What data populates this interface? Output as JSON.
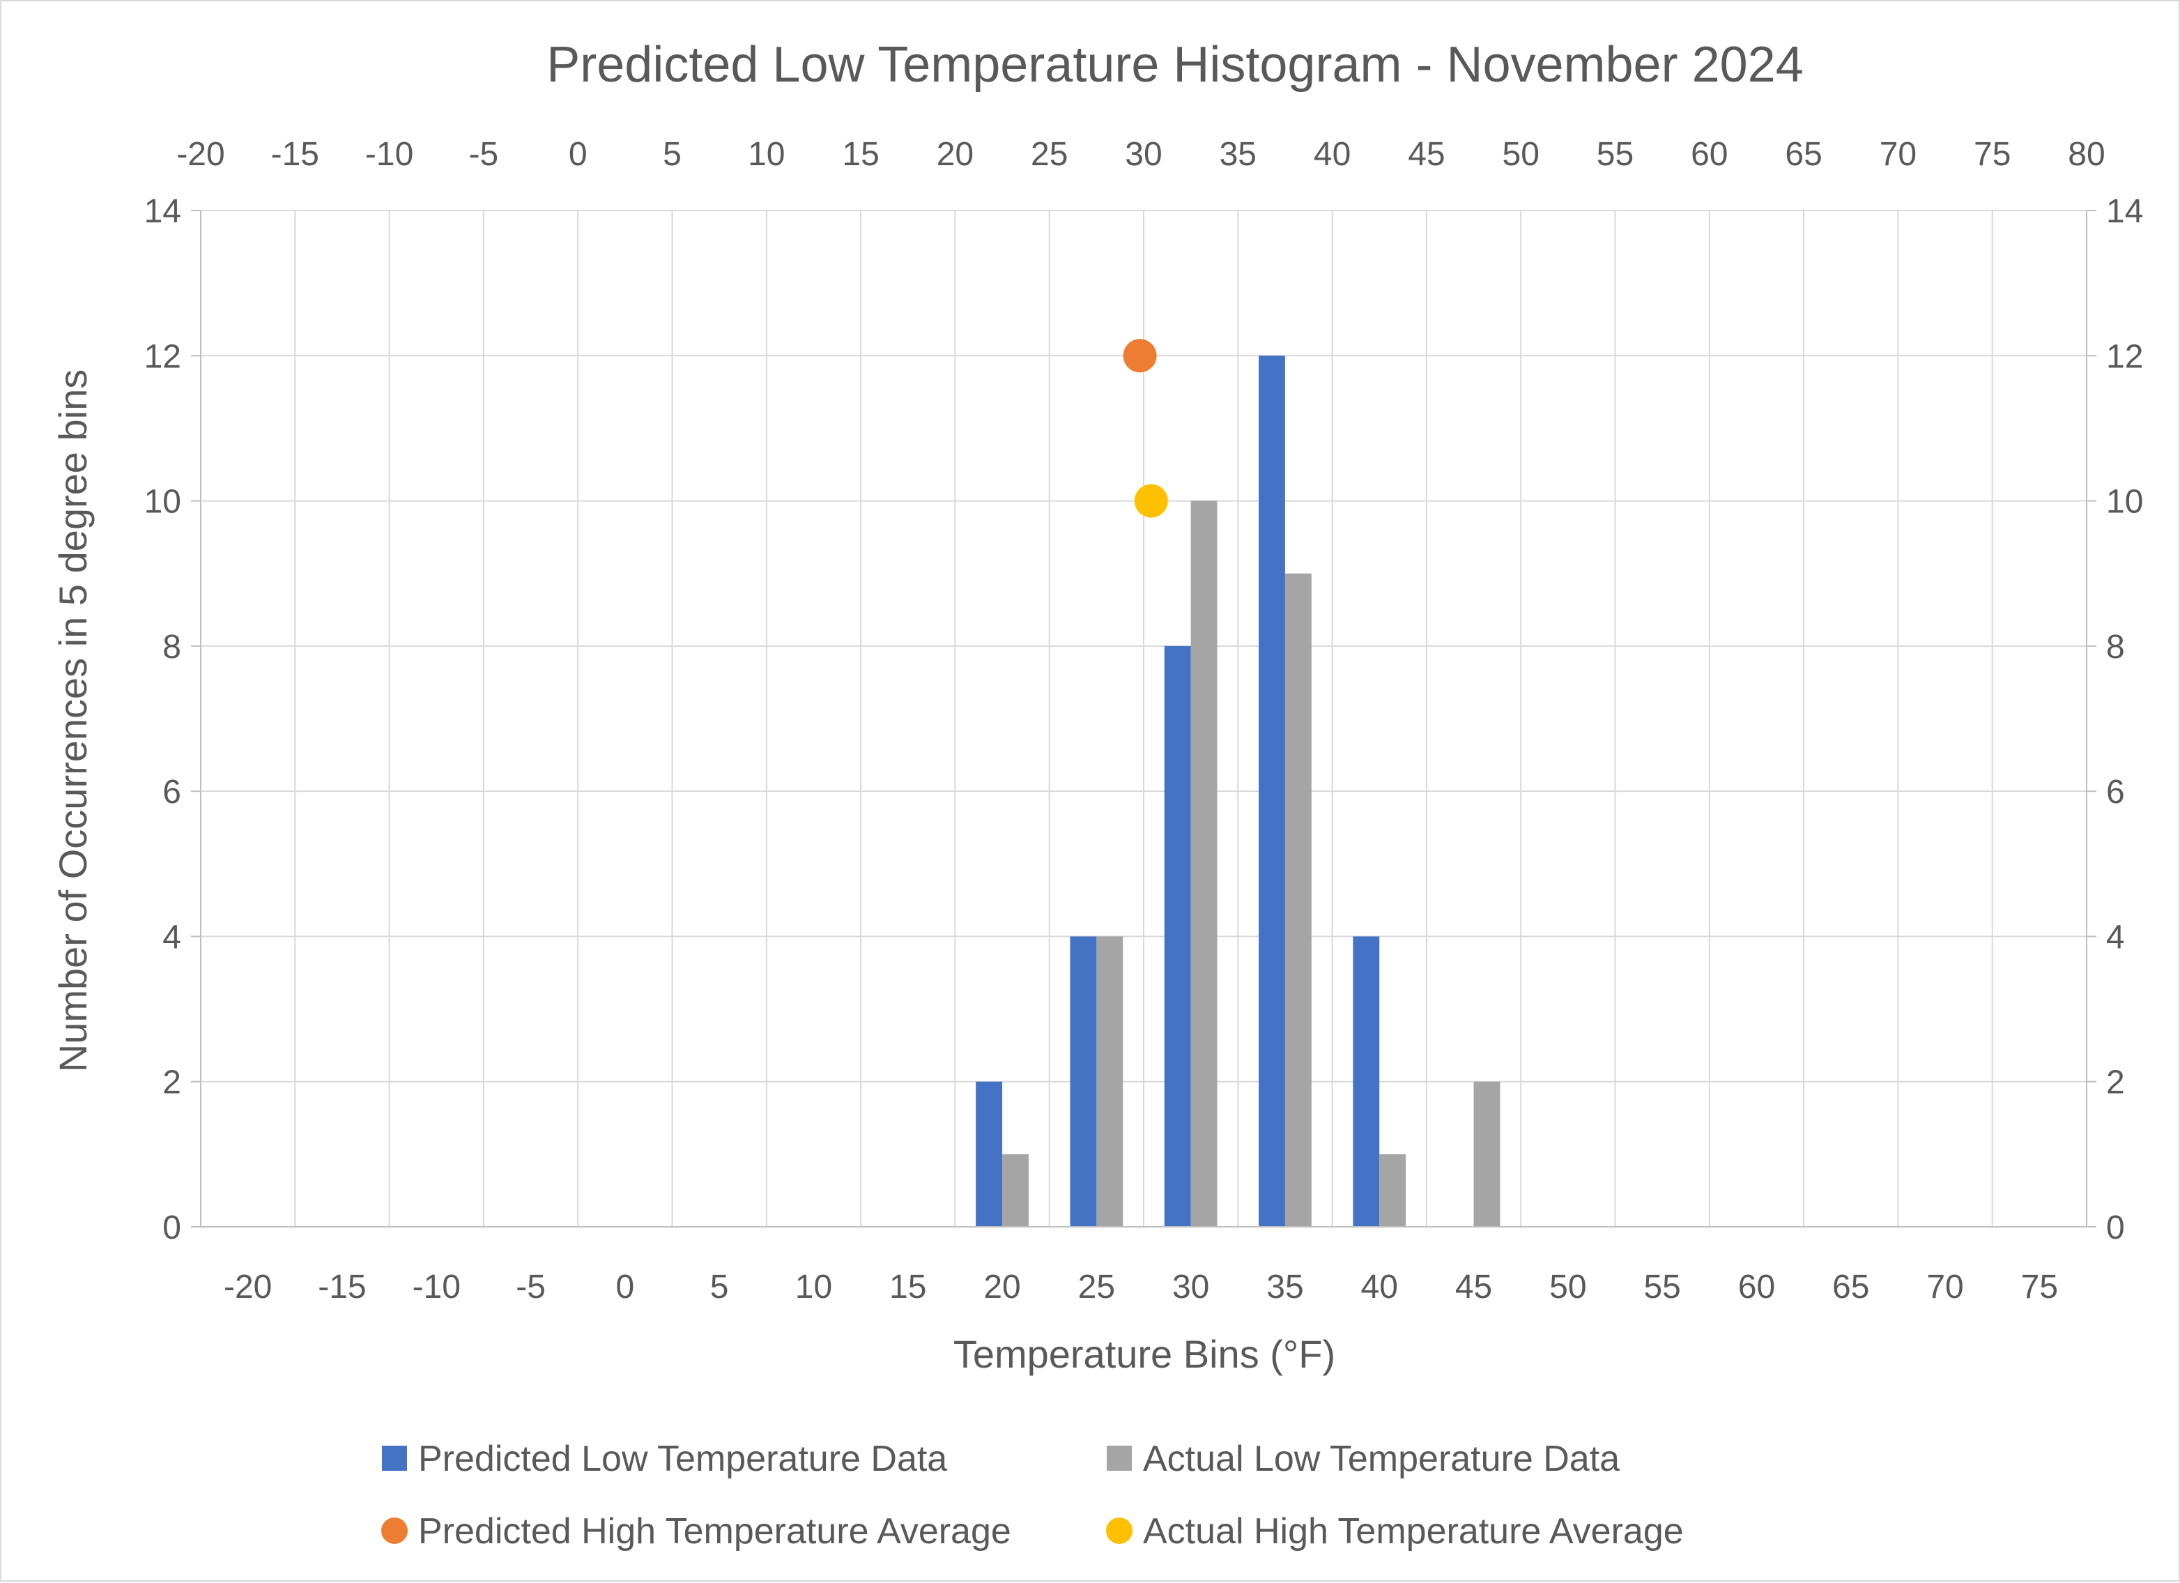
{
  "chart_data": {
    "type": "bar",
    "title": "Predicted Low Temperature Histogram - November 2024",
    "xlabel": "Temperature Bins (°F)",
    "ylabel": "Number of Occurrences in 5 degree bins",
    "categories": [
      "-20",
      "-15",
      "-10",
      "-5",
      "0",
      "5",
      "10",
      "15",
      "20",
      "25",
      "30",
      "35",
      "40",
      "45",
      "50",
      "55",
      "60",
      "65",
      "70",
      "75"
    ],
    "series": [
      {
        "name": "Predicted Low Temperature Data",
        "color": "#4472c4",
        "values": [
          0,
          0,
          0,
          0,
          0,
          0,
          0,
          0,
          2,
          4,
          8,
          12,
          4,
          0,
          0,
          0,
          0,
          0,
          0,
          0
        ]
      },
      {
        "name": "Actual Low Temperature Data",
        "color": "#a5a5a5",
        "values": [
          0,
          0,
          0,
          0,
          0,
          0,
          0,
          0,
          1,
          4,
          10,
          9,
          1,
          2,
          0,
          0,
          0,
          0,
          0,
          0
        ]
      }
    ],
    "scatter_series": [
      {
        "name": "Predicted High Temperature Average",
        "color": "#ed7d31",
        "x": 29.8,
        "y": 12
      },
      {
        "name": "Actual High Temperature Average",
        "color": "#ffc000",
        "x": 30.4,
        "y": 10
      }
    ],
    "ylim": [
      0,
      14
    ],
    "y_ticks": [
      "0",
      "2",
      "4",
      "6",
      "8",
      "10",
      "12",
      "14"
    ],
    "secondary_y_ticks": [
      "0",
      "2",
      "4",
      "6",
      "8",
      "10",
      "12",
      "14"
    ],
    "secondary_xlim": [
      -20,
      80
    ],
    "secondary_x_ticks": [
      "-20",
      "-15",
      "-10",
      "-5",
      "0",
      "5",
      "10",
      "15",
      "20",
      "25",
      "30",
      "35",
      "40",
      "45",
      "50",
      "55",
      "60",
      "65",
      "70",
      "75",
      "80"
    ],
    "grid": true,
    "legend_position": "bottom"
  }
}
